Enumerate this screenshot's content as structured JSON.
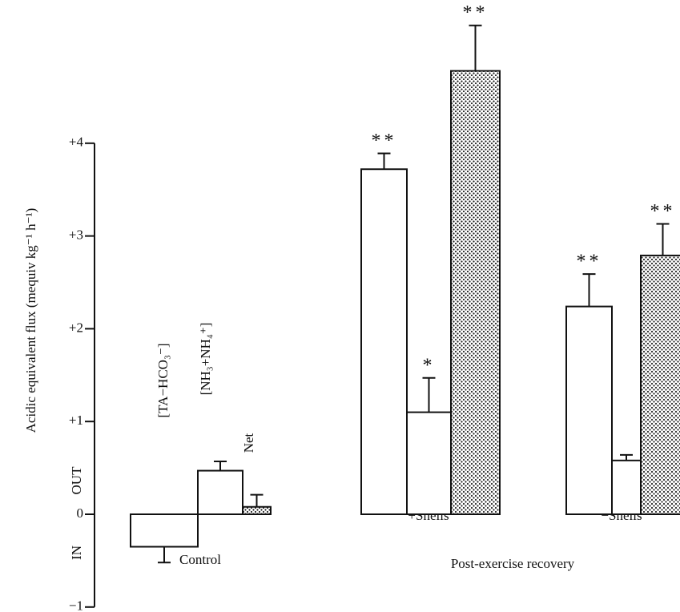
{
  "chart_data": {
    "type": "bar",
    "y_label": "Acidic equivalent flux (mequiv kg⁻¹ h⁻¹)",
    "direction_labels": [
      "OUT",
      "IN"
    ],
    "categories": [
      "Control",
      "+Shells",
      "−Shells"
    ],
    "group_label": "Post-exercise recovery",
    "series": [
      {
        "name": "[TA−HCO₃⁻]",
        "color": "#ffffff",
        "pattern": "none",
        "values": [
          -0.35,
          3.72,
          2.24
        ],
        "errors": [
          0.17,
          0.17,
          0.35
        ],
        "significance": [
          null,
          "**",
          "**"
        ]
      },
      {
        "name": "[NH₃+NH₄⁺]",
        "color": "#ffffff",
        "pattern": "none",
        "values": [
          0.47,
          1.1,
          0.58
        ],
        "errors": [
          0.1,
          0.37,
          0.06
        ],
        "significance": [
          null,
          "*",
          null
        ]
      },
      {
        "name": "Net",
        "color": "#ffffff",
        "pattern": "dots",
        "values": [
          0.08,
          4.78,
          2.79
        ],
        "errors": [
          0.13,
          0.49,
          0.34
        ],
        "significance": [
          null,
          "**",
          "**"
        ]
      }
    ],
    "ylim": [
      -1,
      5.5
    ],
    "yticks": [
      {
        "value": -1,
        "label": "−1"
      },
      0,
      {
        "value": 1,
        "label": "+1"
      },
      {
        "value": 2,
        "label": "+2"
      },
      {
        "value": 3,
        "label": "+3"
      },
      {
        "value": 4,
        "label": "+4"
      }
    ]
  }
}
